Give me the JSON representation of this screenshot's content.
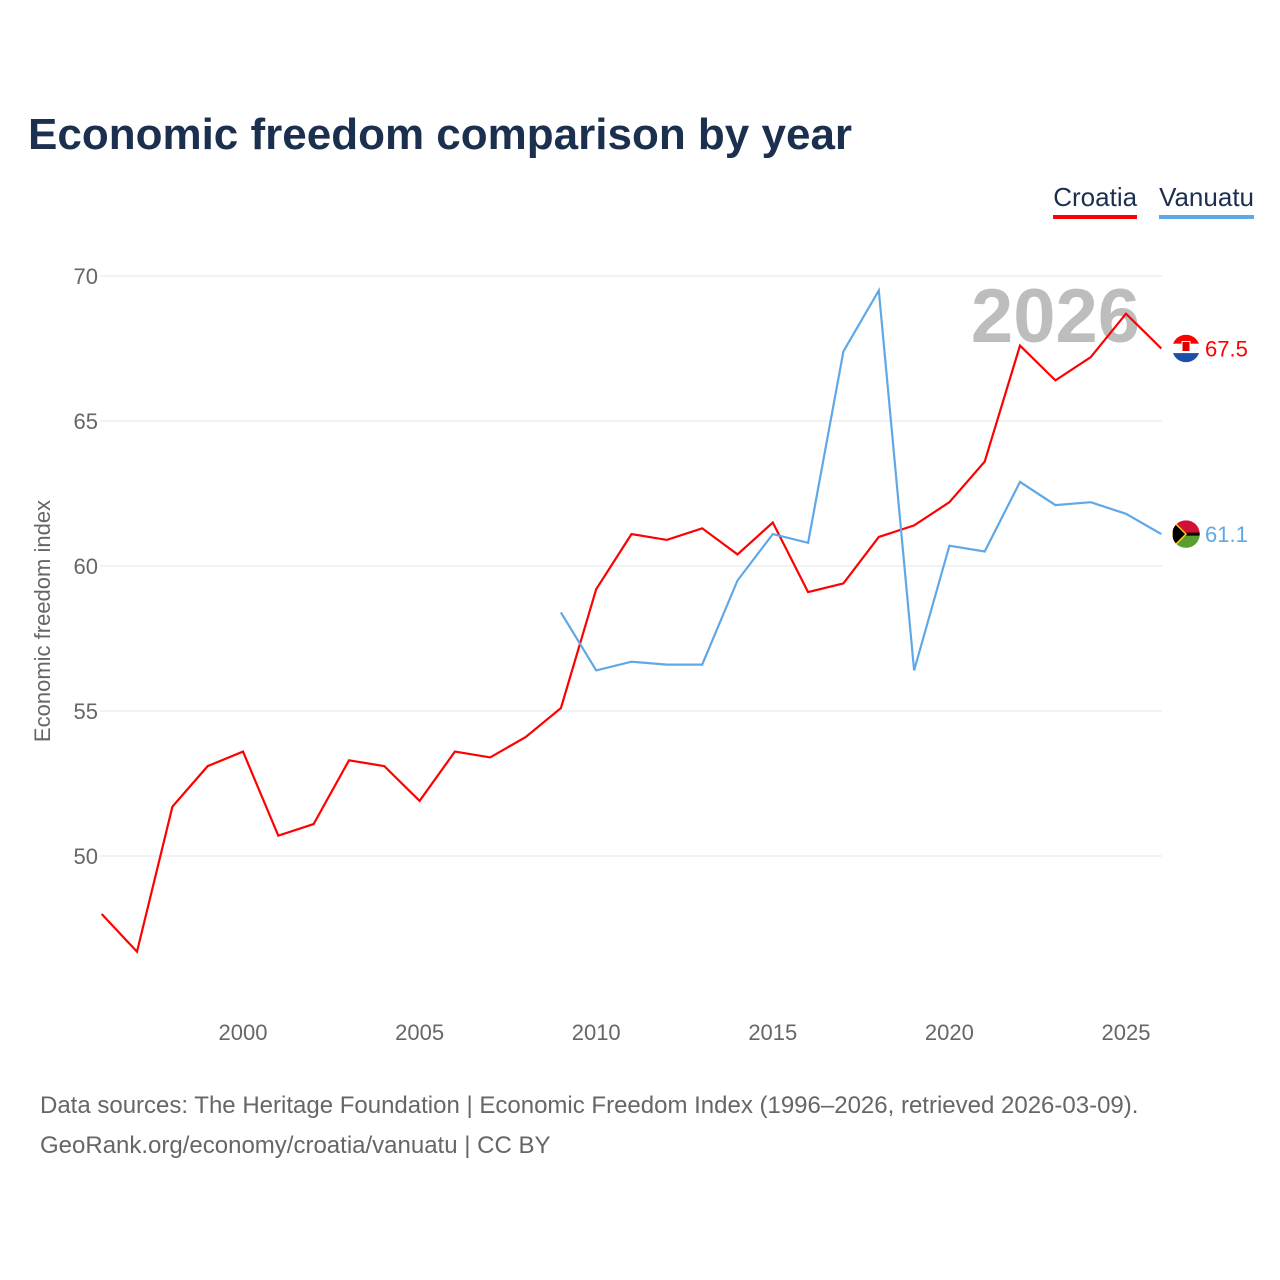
{
  "title": "Economic freedom comparison by year",
  "footer": {
    "line1": "Data sources: The Heritage Foundation | Economic Freedom Index (1996–2026, retrieved 2026-03-09).",
    "line2": "GeoRank.org/economy/croatia/vanuatu | CC BY"
  },
  "chart_data": {
    "type": "line",
    "title": "Economic freedom comparison by year",
    "ylabel": "Economic freedom index",
    "xlabel": "",
    "year_label": "2026",
    "xlim": [
      1996,
      2026
    ],
    "ylim": [
      45,
      70
    ],
    "yticks": [
      50,
      55,
      60,
      65,
      70
    ],
    "xticks": [
      2000,
      2005,
      2010,
      2015,
      2020,
      2025
    ],
    "legend_position": "top-right",
    "series": [
      {
        "name": "Croatia",
        "color": "#ff0000",
        "end_label": "67.5",
        "x": [
          1996,
          1997,
          1998,
          1999,
          2000,
          2001,
          2002,
          2003,
          2004,
          2005,
          2006,
          2007,
          2008,
          2009,
          2010,
          2011,
          2012,
          2013,
          2014,
          2015,
          2016,
          2017,
          2018,
          2019,
          2020,
          2021,
          2022,
          2023,
          2024,
          2025,
          2026
        ],
        "values": [
          48.0,
          46.7,
          51.7,
          53.1,
          53.6,
          50.7,
          51.1,
          53.3,
          53.1,
          51.9,
          53.6,
          53.4,
          54.1,
          55.1,
          59.2,
          61.1,
          60.9,
          61.3,
          60.4,
          61.5,
          59.1,
          59.4,
          61.0,
          61.4,
          62.2,
          63.6,
          67.6,
          66.4,
          67.2,
          68.7,
          67.5
        ]
      },
      {
        "name": "Vanuatu",
        "color": "#5fa8e8",
        "end_label": "61.1",
        "x": [
          2009,
          2010,
          2011,
          2012,
          2013,
          2014,
          2015,
          2016,
          2017,
          2018,
          2019,
          2020,
          2021,
          2022,
          2023,
          2024,
          2025,
          2026
        ],
        "values": [
          58.4,
          56.4,
          56.7,
          56.6,
          56.6,
          59.5,
          61.1,
          60.8,
          67.4,
          69.5,
          56.4,
          60.7,
          60.5,
          62.9,
          62.1,
          62.2,
          61.8,
          61.1
        ]
      }
    ]
  }
}
